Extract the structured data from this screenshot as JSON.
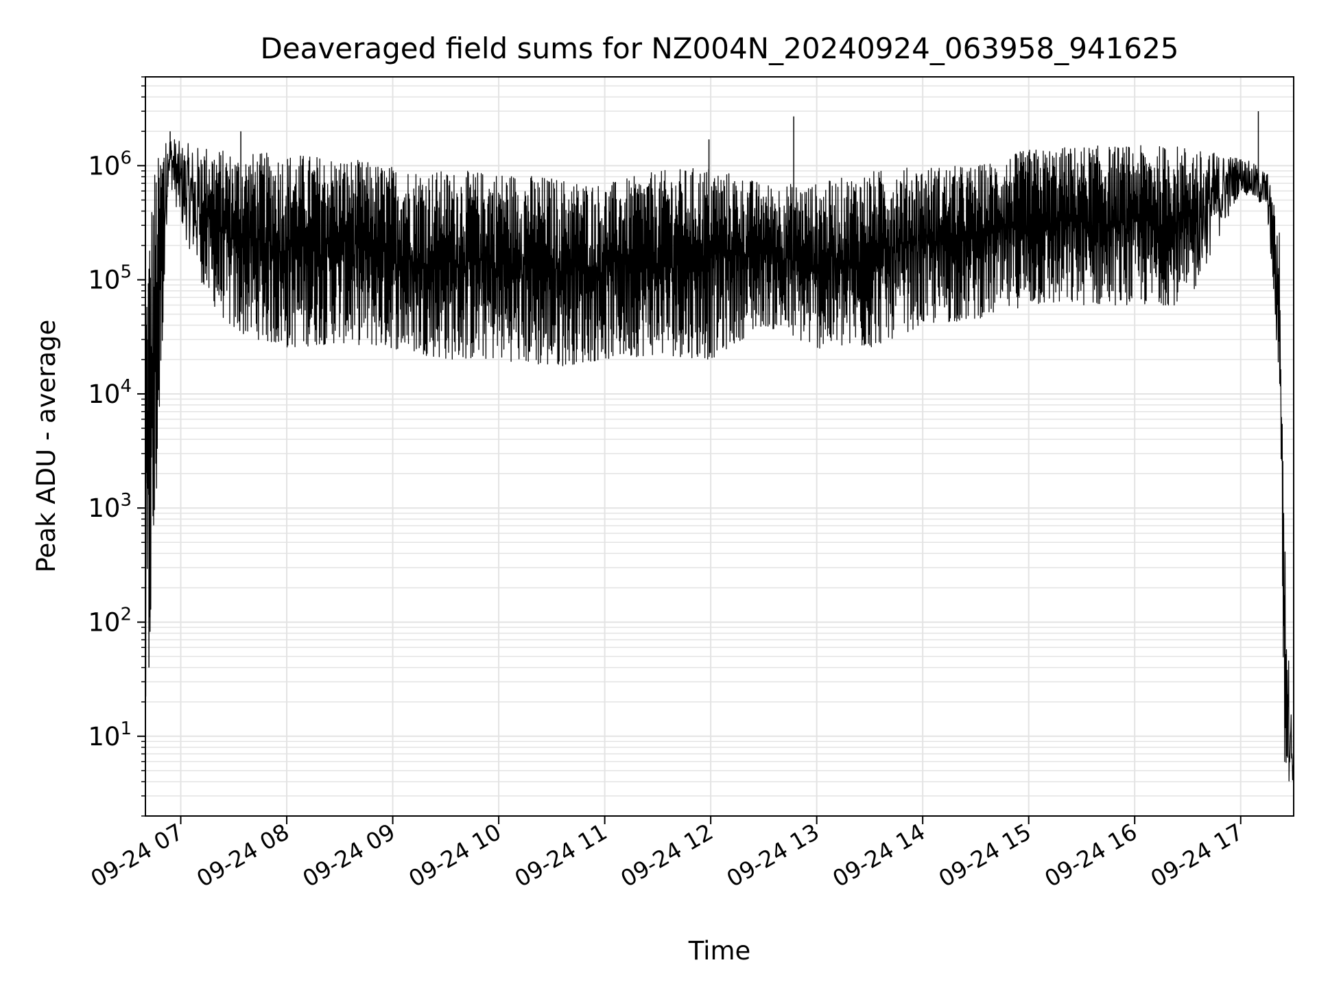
{
  "chart_data": {
    "type": "line",
    "title": "Deaveraged field sums for NZ004N_20240924_063958_941625",
    "xlabel": "Time",
    "ylabel": "Peak ADU - average",
    "x_range": [
      "2024-09-24 06:40",
      "2024-09-24 17:30"
    ],
    "y_range": [
      2,
      6000000
    ],
    "y_scale": "log",
    "grid": "on (major and minor)",
    "legend": "none",
    "line_color": "#000000",
    "grid_color": "#e3e3e3",
    "x_ticks": [
      "09-24 07",
      "09-24 08",
      "09-24 09",
      "09-24 10",
      "09-24 11",
      "09-24 12",
      "09-24 13",
      "09-24 14",
      "09-24 15",
      "09-24 16",
      "09-24 17"
    ],
    "y_ticks": [
      {
        "base": "10",
        "exp": "1",
        "value": 10
      },
      {
        "base": "10",
        "exp": "2",
        "value": 100
      },
      {
        "base": "10",
        "exp": "3",
        "value": 1000
      },
      {
        "base": "10",
        "exp": "4",
        "value": 10000
      },
      {
        "base": "10",
        "exp": "5",
        "value": 100000
      },
      {
        "base": "10",
        "exp": "6",
        "value": 1000000
      }
    ],
    "series": [
      {
        "envelope": [
          {
            "t": "2024-09-24 06:40",
            "low": 7,
            "high": 120000
          },
          {
            "t": "2024-09-24 06:45",
            "low": 300,
            "high": 1000000
          },
          {
            "t": "2024-09-24 06:53",
            "low": 800000,
            "high": 2000000
          },
          {
            "t": "2024-09-24 07:00",
            "low": 300000,
            "high": 1600000
          },
          {
            "t": "2024-09-24 07:15",
            "low": 70000,
            "high": 1500000
          },
          {
            "t": "2024-09-24 07:30",
            "low": 35000,
            "high": 1300000
          },
          {
            "t": "2024-09-24 08:00",
            "low": 25000,
            "high": 1300000
          },
          {
            "t": "2024-09-24 08:30",
            "low": 28000,
            "high": 1200000
          },
          {
            "t": "2024-09-24 09:00",
            "low": 25000,
            "high": 1000000
          },
          {
            "t": "2024-09-24 09:30",
            "low": 20000,
            "high": 900000
          },
          {
            "t": "2024-09-24 10:00",
            "low": 20000,
            "high": 900000
          },
          {
            "t": "2024-09-24 10:30",
            "low": 17000,
            "high": 800000
          },
          {
            "t": "2024-09-24 11:00",
            "low": 20000,
            "high": 700000
          },
          {
            "t": "2024-09-24 11:30",
            "low": 22000,
            "high": 900000
          },
          {
            "t": "2024-09-24 12:00",
            "low": 20000,
            "high": 1000000
          },
          {
            "t": "2024-09-24 12:30",
            "low": 40000,
            "high": 700000
          },
          {
            "t": "2024-09-24 13:00",
            "low": 25000,
            "high": 700000
          },
          {
            "t": "2024-09-24 13:30",
            "low": 25000,
            "high": 900000
          },
          {
            "t": "2024-09-24 14:00",
            "low": 40000,
            "high": 1000000
          },
          {
            "t": "2024-09-24 14:30",
            "low": 45000,
            "high": 1000000
          },
          {
            "t": "2024-09-24 15:00",
            "low": 60000,
            "high": 1400000
          },
          {
            "t": "2024-09-24 15:30",
            "low": 60000,
            "high": 1500000
          },
          {
            "t": "2024-09-24 16:00",
            "low": 60000,
            "high": 1500000
          },
          {
            "t": "2024-09-24 16:30",
            "low": 60000,
            "high": 1500000
          },
          {
            "t": "2024-09-24 17:00",
            "low": 600000,
            "high": 1200000
          },
          {
            "t": "2024-09-24 17:15",
            "low": 400000,
            "high": 900000
          },
          {
            "t": "2024-09-24 17:22",
            "low": 10000,
            "high": 300000
          },
          {
            "t": "2024-09-24 17:25",
            "low": 4,
            "high": 500
          },
          {
            "t": "2024-09-24 17:30",
            "low": 4,
            "high": 5
          }
        ],
        "spikes": [
          {
            "t": "2024-09-24 06:40",
            "value": 7
          },
          {
            "t": "2024-09-24 06:41",
            "value": 30000
          },
          {
            "t": "2024-09-24 06:42",
            "value": 40
          },
          {
            "t": "2024-09-24 06:54",
            "value": 2000000
          },
          {
            "t": "2024-09-24 07:34",
            "value": 2000000
          },
          {
            "t": "2024-09-24 11:59",
            "value": 1700000
          },
          {
            "t": "2024-09-24 12:47",
            "value": 2700000
          },
          {
            "t": "2024-09-24 17:10",
            "value": 3000000
          }
        ]
      }
    ]
  }
}
